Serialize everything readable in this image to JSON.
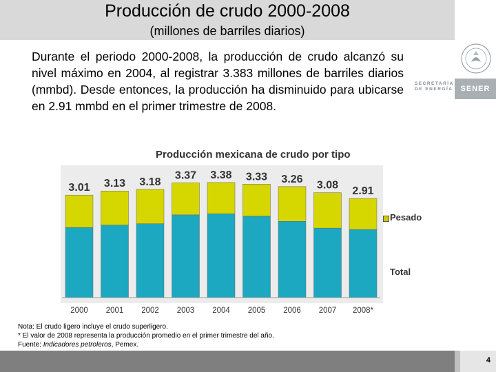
{
  "header": {
    "title": "Producción de crudo 2000-2008",
    "subtitle": "(millones de barriles diarios)"
  },
  "branding": {
    "secretaria_line1": "SECRETARÍA",
    "secretaria_line2": "DE ENERGÍA",
    "logo_text": "SENER"
  },
  "body_text": "Durante el periodo 2000-2008, la producción de crudo alcanzó su nivel máximo en 2004, al registrar 3.383 millones de barriles diarios (mmbd). Desde entonces, la producción ha disminuido para ubicarse en 2.91 mmbd en el primer trimestre de 2008.",
  "chart_data": {
    "type": "bar",
    "stacked": true,
    "title": "Producción mexicana de crudo por tipo",
    "categories": [
      "2000",
      "2001",
      "2002",
      "2003",
      "2004",
      "2005",
      "2006",
      "2007",
      "2008*"
    ],
    "series": [
      {
        "name": "",
        "values": [
          2.06,
          2.13,
          2.17,
          2.43,
          2.46,
          2.39,
          2.24,
          2.04,
          2.0
        ],
        "color": "#1ba8c0"
      },
      {
        "name": "Pesado",
        "values": [
          0.95,
          1.0,
          1.01,
          0.94,
          0.92,
          0.94,
          1.02,
          1.04,
          0.91
        ],
        "color": "#d6d600"
      }
    ],
    "totals": [
      3.01,
      3.13,
      3.18,
      3.37,
      3.38,
      3.33,
      3.26,
      3.08,
      2.91
    ],
    "total_labels": [
      "3.01",
      "3.13",
      "3.18",
      "3.37",
      "3.38",
      "3.33",
      "3.26",
      "3.08",
      "2.91"
    ],
    "legend": [
      "Pesado",
      "Total"
    ],
    "legend_position": "right",
    "ylim": [
      0,
      3.6
    ],
    "grid": false
  },
  "notes": {
    "line1": "Nota: El crudo ligero incluye el crudo superligero.",
    "line2": "* El valor de 2008 representa la producción promedio en el primer trimestre del año.",
    "line3_prefix": "Fuente: ",
    "line3_italic": "Indicadores petroleros",
    "line3_suffix": ", Pemex."
  },
  "page_number": "4",
  "colors": {
    "title_band": "#d9d9d9",
    "footer_band": "#7f7f7f",
    "bar_lower": "#1ba8c0",
    "bar_upper": "#d6d600",
    "chart_bg": "#ececec"
  }
}
